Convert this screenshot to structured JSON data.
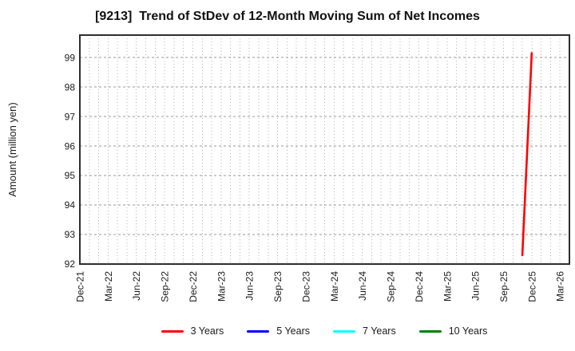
{
  "chart_data": {
    "type": "line",
    "title": "[9213]  Trend of StDev of 12-Month Moving Sum of Net Incomes",
    "ylabel": "Amount (million yen)",
    "x_axis": {
      "start_month": "Dec-21",
      "end_month": "Mar-26",
      "months_total": 52,
      "tick_labels": [
        "Dec-21",
        "Mar-22",
        "Jun-22",
        "Sep-22",
        "Dec-22",
        "Mar-23",
        "Jun-23",
        "Sep-23",
        "Dec-23",
        "Mar-24",
        "Jun-24",
        "Sep-24",
        "Dec-24",
        "Mar-25",
        "Jun-25",
        "Sep-25",
        "Dec-25",
        "Mar-26"
      ]
    },
    "y_axis": {
      "ticks": [
        92,
        93,
        94,
        95,
        96,
        97,
        98,
        99
      ],
      "lim": [
        92,
        99.76
      ]
    },
    "grid": {
      "horizontal": true,
      "vertical_monthly": true
    },
    "series": [
      {
        "name": "3 Years",
        "color": "#ff0000",
        "points": [
          {
            "x": "Nov-25",
            "y": 92.3
          },
          {
            "x": "Dec-25",
            "y": 99.15
          }
        ]
      },
      {
        "name": "5 Years",
        "color": "#0000ff",
        "points": []
      },
      {
        "name": "7 Years",
        "color": "#00ffff",
        "points": []
      },
      {
        "name": "10 Years",
        "color": "#008000",
        "points": []
      }
    ],
    "legend": {
      "position": "bottom-center",
      "entries": [
        "3 Years",
        "5 Years",
        "7 Years",
        "10 Years"
      ]
    }
  },
  "colors": {
    "background": "#ffffff",
    "plot_border": "#2e2e2e",
    "grid_vertical": "#b3b3b3",
    "grid_horizontal": "#9a9a9a",
    "tick_text": "#1a1a1a"
  }
}
